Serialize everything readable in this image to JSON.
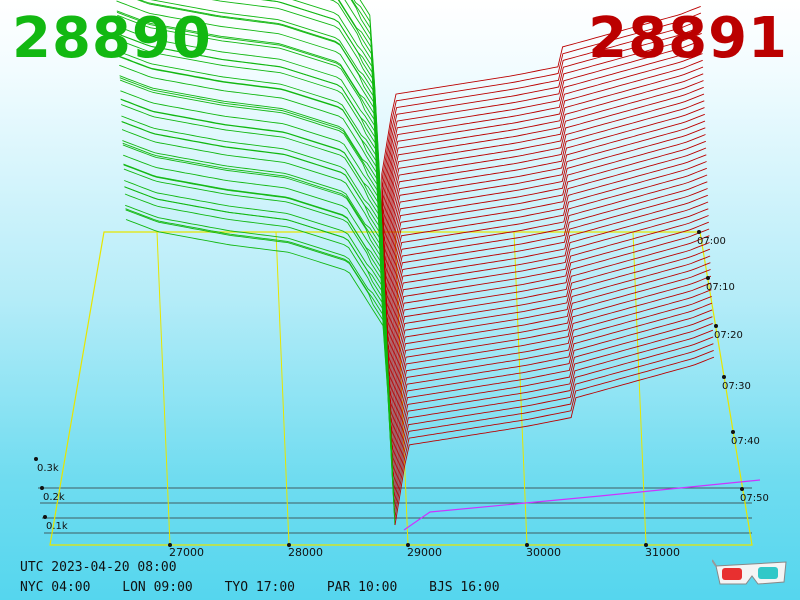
{
  "header": {
    "bid_price": "28890",
    "ask_price": "28891",
    "bid_color": "#12b812",
    "ask_color": "#bb0000"
  },
  "footer": {
    "utc": "UTC 2023-04-20 08:00",
    "cities": [
      {
        "label": "NYC 04:00"
      },
      {
        "label": "LON 09:00"
      },
      {
        "label": "TYO 17:00"
      },
      {
        "label": "PAR 10:00"
      },
      {
        "label": "BJS 16:00"
      }
    ]
  },
  "icons": {
    "glasses": "3d-glasses-icon"
  },
  "chart_data": {
    "type": "area",
    "subtype": "3d-order-book-depth",
    "x_ticks": [
      27000,
      28000,
      29000,
      30000,
      31000
    ],
    "x_tick_labels": [
      "27000",
      "28000",
      "29000",
      "30000",
      "31000"
    ],
    "y_ticks": [
      100,
      200,
      300
    ],
    "y_tick_labels": [
      "0.1k",
      "0.2k",
      "0.3k"
    ],
    "time_labels": [
      "07:00",
      "07:10",
      "07:20",
      "07:30",
      "07:40",
      "07:50"
    ],
    "series": [
      {
        "side": "bid",
        "color": "#12b812",
        "profile_x": [
          26630,
          26900,
          27500,
          28000,
          28500,
          28800,
          28890
        ],
        "profile_y": [
          325,
          312,
          298,
          290,
          270,
          210,
          0
        ]
      },
      {
        "side": "ask",
        "color": "#bb0000",
        "profile_x": [
          28891,
          29000,
          29500,
          30000,
          30400,
          31400,
          31600
        ],
        "profile_y": [
          0,
          85,
          95,
          105,
          115,
          150,
          160
        ]
      }
    ],
    "zero_line_color": "#cc33ff",
    "grid_color": "#e6e600"
  }
}
